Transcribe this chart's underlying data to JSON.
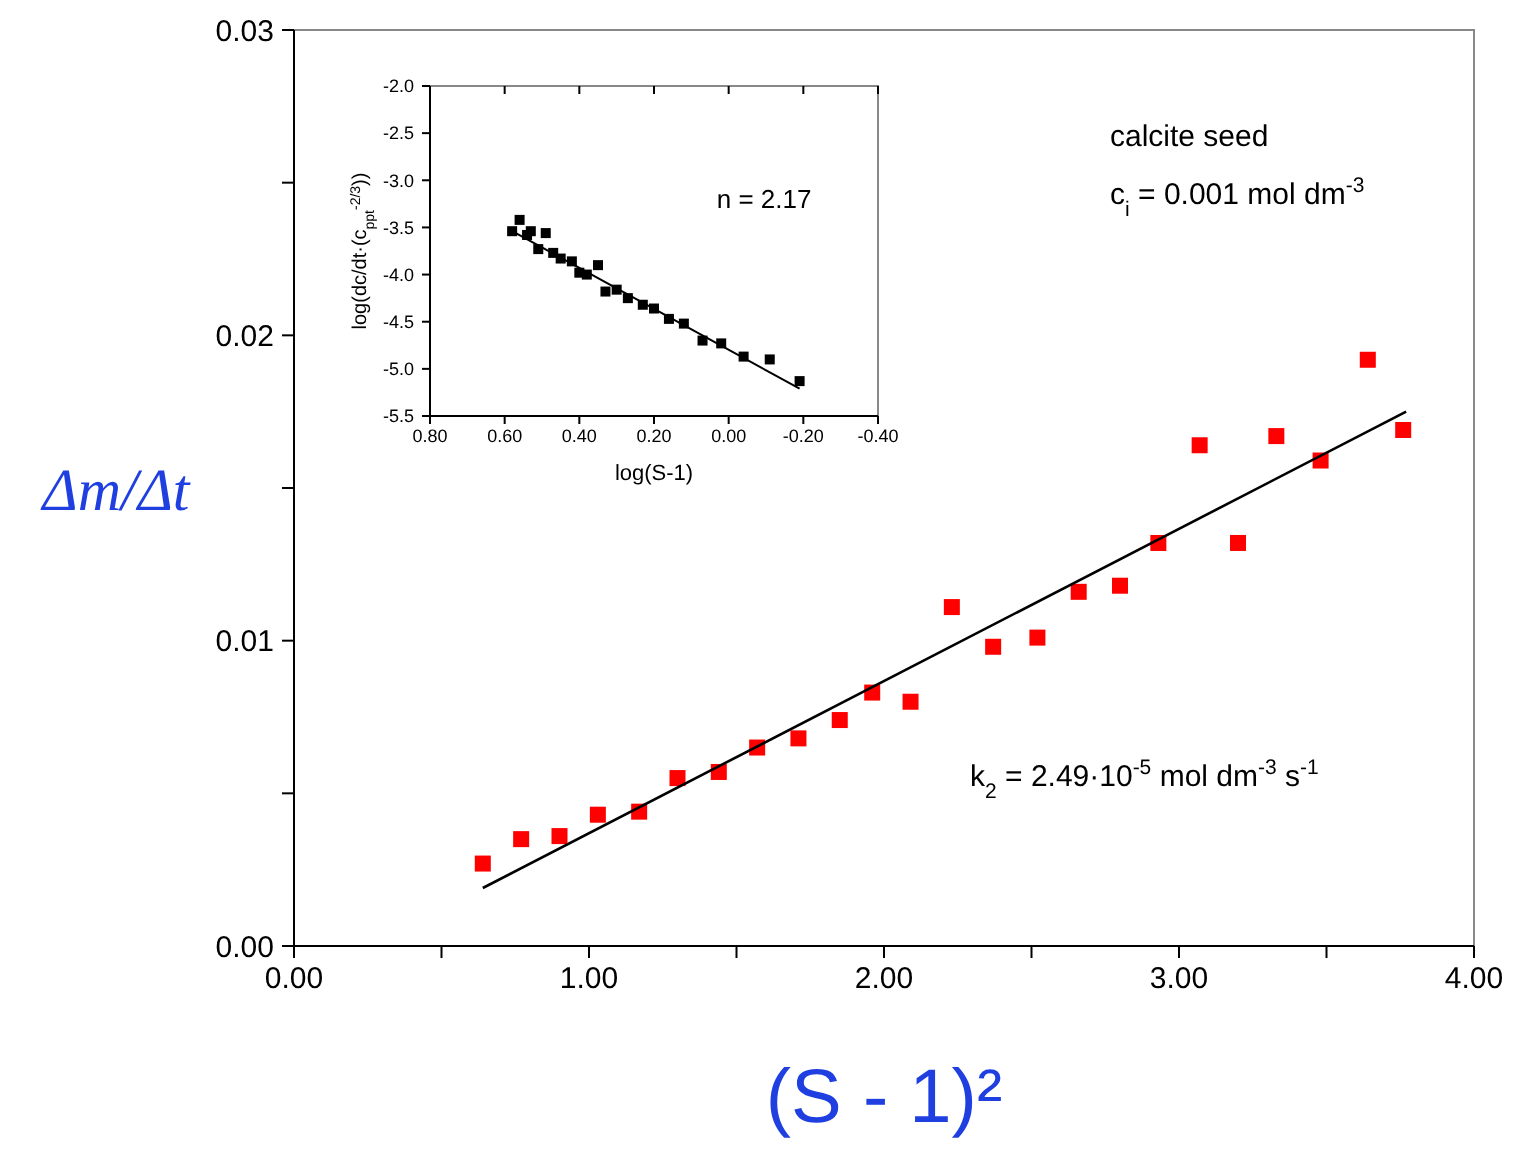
{
  "chart_data": [
    {
      "type": "scatter",
      "xlabel": "(S - 1)²",
      "ylabel": "Δm/Δt",
      "xlim": [
        0,
        4
      ],
      "xticks": [
        {
          "value": 0,
          "label": "0.00"
        },
        {
          "value": 0.5,
          "label": null
        },
        {
          "value": 1,
          "label": "1.00"
        },
        {
          "value": 1.5,
          "label": null
        },
        {
          "value": 2,
          "label": "2.00"
        },
        {
          "value": 2.5,
          "label": null
        },
        {
          "value": 3,
          "label": "3.00"
        },
        {
          "value": 3.5,
          "label": null
        },
        {
          "value": 4,
          "label": "4.00"
        }
      ],
      "ylim": [
        0,
        0.03
      ],
      "yticks": [
        {
          "value": 0,
          "label": "0.00"
        },
        {
          "value": 0.005,
          "label": null
        },
        {
          "value": 0.01,
          "label": "0.01"
        },
        {
          "value": 0.015,
          "label": null
        },
        {
          "value": 0.02,
          "label": "0.02"
        },
        {
          "value": 0.025,
          "label": null
        },
        {
          "value": 0.03,
          "label": "0.03"
        }
      ],
      "annotations": [
        "calcite seed",
        "c$_{i}$ = 0.001 mol dm$^{-3}$",
        "k$_{2}$ = 2.49·10$^{-5}$ mol dm$^{-3}$ s$^{-1}$"
      ],
      "series": [
        {
          "type": "scatter",
          "marker": "square",
          "color": "#ff0000",
          "x": [
            0.64,
            0.77,
            0.9,
            1.03,
            1.17,
            1.3,
            1.44,
            1.57,
            1.71,
            1.85,
            1.96,
            2.09,
            2.23,
            2.37,
            2.52,
            2.66,
            2.8,
            2.93,
            3.07,
            3.2,
            3.33,
            3.48,
            3.64,
            3.76
          ],
          "values": [
            0.0027,
            0.0035,
            0.0036,
            0.0043,
            0.0044,
            0.0055,
            0.0057,
            0.0065,
            0.0068,
            0.0074,
            0.0083,
            0.008,
            0.0111,
            0.0098,
            0.0101,
            0.0116,
            0.0118,
            0.0132,
            0.0164,
            0.0132,
            0.0167,
            0.0159,
            0.0192,
            0.0169
          ]
        },
        {
          "type": "line",
          "marker": "none",
          "color": "#000000",
          "x": [
            0.64,
            3.77
          ],
          "values": [
            0.0019,
            0.0175
          ]
        }
      ]
    },
    {
      "type": "scatter",
      "xlabel": "log(S-1)",
      "ylabel": "log(dc/dt·(c$_{ppt}$$^{-2/3}$))",
      "xlim": [
        0.8,
        -0.4
      ],
      "xticks": [
        {
          "value": 0.8,
          "label": "0.80"
        },
        {
          "value": 0.6,
          "label": "0.60"
        },
        {
          "value": 0.4,
          "label": "0.40"
        },
        {
          "value": 0.2,
          "label": "0.20"
        },
        {
          "value": 0,
          "label": "0.00"
        },
        {
          "value": -0.2,
          "label": "-0.20"
        },
        {
          "value": -0.4,
          "label": "-0.40"
        }
      ],
      "ylim": [
        -5.5,
        -2.0
      ],
      "yticks": [
        {
          "value": -5.5,
          "label": "-5.5"
        },
        {
          "value": -5,
          "label": "-5.0"
        },
        {
          "value": -4.5,
          "label": "-4.5"
        },
        {
          "value": -4,
          "label": "-4.0"
        },
        {
          "value": -3.5,
          "label": "-3.5"
        },
        {
          "value": -3,
          "label": "-3.0"
        },
        {
          "value": -2.5,
          "label": "-2.5"
        },
        {
          "value": -2,
          "label": "-2.0"
        }
      ],
      "annotations": [
        "n = 2.17"
      ],
      "series": [
        {
          "type": "scatter",
          "marker": "square",
          "color": "#000000",
          "x": [
            0.58,
            0.56,
            0.54,
            0.53,
            0.51,
            0.49,
            0.47,
            0.45,
            0.42,
            0.4,
            0.38,
            0.35,
            0.33,
            0.3,
            0.27,
            0.23,
            0.2,
            0.16,
            0.12,
            0.07,
            0.02,
            -0.04,
            -0.11,
            -0.19
          ],
          "values": [
            -3.54,
            -3.42,
            -3.58,
            -3.54,
            -3.73,
            -3.56,
            -3.77,
            -3.83,
            -3.86,
            -3.98,
            -4.0,
            -3.9,
            -4.18,
            -4.16,
            -4.25,
            -4.32,
            -4.36,
            -4.47,
            -4.52,
            -4.7,
            -4.73,
            -4.87,
            -4.9,
            -5.13
          ]
        },
        {
          "type": "line",
          "marker": "none",
          "color": "#000000",
          "x": [
            0.57,
            -0.19
          ],
          "values": [
            -3.56,
            -5.21
          ]
        }
      ]
    }
  ]
}
